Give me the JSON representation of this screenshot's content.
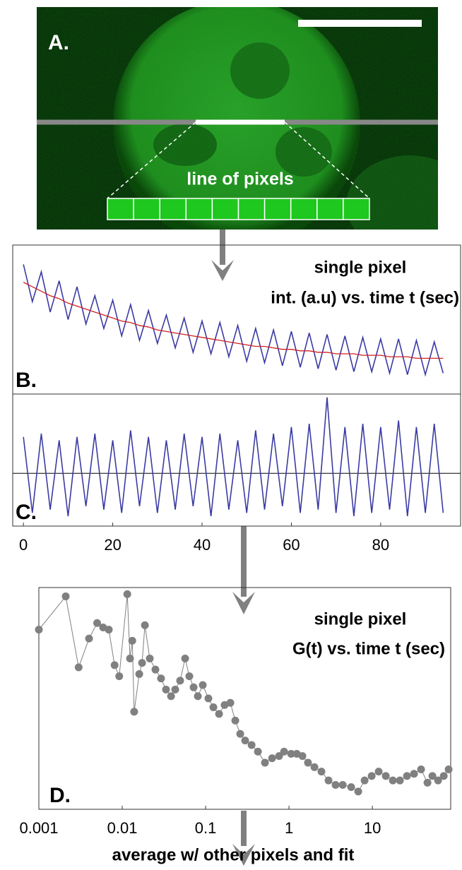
{
  "panel_a": {
    "label": "A.",
    "caption": "line of pixels"
  },
  "chart_data": [
    {
      "type": "line",
      "label": "B.",
      "annotations": [
        "single pixel",
        "int. (a.u) vs. time t (sec)"
      ],
      "x": [
        0,
        2,
        4,
        6,
        8,
        10,
        12,
        14,
        16,
        18,
        20,
        22,
        24,
        26,
        28,
        30,
        32,
        34,
        36,
        38,
        40,
        42,
        44,
        46,
        48,
        50,
        52,
        54,
        56,
        58,
        60,
        62,
        64,
        66,
        68,
        70,
        72,
        74,
        76,
        78,
        80,
        82,
        84,
        86,
        88,
        90,
        92,
        94
      ],
      "series": [
        {
          "color": "#3b3ba3",
          "values": [
            0.87,
            0.62,
            0.82,
            0.55,
            0.76,
            0.5,
            0.72,
            0.47,
            0.66,
            0.44,
            0.63,
            0.39,
            0.6,
            0.36,
            0.56,
            0.34,
            0.53,
            0.31,
            0.51,
            0.28,
            0.49,
            0.27,
            0.48,
            0.25,
            0.46,
            0.22,
            0.44,
            0.21,
            0.43,
            0.19,
            0.42,
            0.18,
            0.41,
            0.17,
            0.4,
            0.16,
            0.39,
            0.15,
            0.38,
            0.15,
            0.37,
            0.14,
            0.37,
            0.13,
            0.36,
            0.13,
            0.35,
            0.14
          ]
        },
        {
          "color": "#d02020",
          "values": [
            0.75,
            0.72,
            0.69,
            0.66,
            0.64,
            0.61,
            0.59,
            0.57,
            0.55,
            0.53,
            0.51,
            0.49,
            0.48,
            0.46,
            0.45,
            0.43,
            0.42,
            0.41,
            0.4,
            0.39,
            0.38,
            0.37,
            0.36,
            0.35,
            0.34,
            0.33,
            0.32,
            0.32,
            0.31,
            0.3,
            0.3,
            0.29,
            0.29,
            0.28,
            0.28,
            0.27,
            0.27,
            0.27,
            0.26,
            0.26,
            0.26,
            0.25,
            0.25,
            0.25,
            0.24,
            0.24,
            0.24,
            0.24
          ]
        }
      ],
      "xlim": [
        -0.5,
        96
      ],
      "ylim": [
        0,
        1
      ]
    },
    {
      "type": "line",
      "label": "C.",
      "x": [
        0,
        2,
        4,
        6,
        8,
        10,
        12,
        14,
        16,
        18,
        20,
        22,
        24,
        26,
        28,
        30,
        32,
        34,
        36,
        38,
        40,
        42,
        44,
        46,
        48,
        50,
        52,
        54,
        56,
        58,
        60,
        62,
        64,
        66,
        68,
        70,
        72,
        74,
        76,
        78,
        80,
        82,
        84,
        86,
        88,
        90,
        92,
        94
      ],
      "series": [
        {
          "color": "#3b3ba3",
          "values": [
            0.55,
            -0.6,
            0.6,
            -0.55,
            0.5,
            -0.65,
            0.55,
            -0.5,
            0.6,
            -0.55,
            0.5,
            -0.6,
            0.65,
            -0.5,
            0.55,
            -0.6,
            0.5,
            -0.55,
            0.6,
            -0.5,
            0.55,
            -0.65,
            0.6,
            -0.55,
            0.5,
            -0.6,
            0.65,
            -0.55,
            0.6,
            -0.5,
            0.7,
            -0.6,
            0.75,
            -0.55,
            1.15,
            -0.6,
            0.7,
            -0.65,
            0.75,
            -0.6,
            0.7,
            -0.55,
            0.8,
            -0.65,
            0.7,
            -0.6,
            0.75,
            -0.6
          ]
        }
      ],
      "xlim": [
        -0.5,
        96
      ],
      "ylim": [
        -0.8,
        1.2
      ],
      "xticks": [
        0,
        20,
        40,
        60,
        80
      ]
    },
    {
      "type": "scatter",
      "label": "D.",
      "annotations": [
        "single pixel",
        "G(t) vs. time t (sec)"
      ],
      "log_x": true,
      "color": "#808080",
      "x": [
        0.001,
        0.0021,
        0.003,
        0.004,
        0.005,
        0.0059,
        0.0069,
        0.0081,
        0.0092,
        0.0115,
        0.0124,
        0.0132,
        0.0139,
        0.016,
        0.0173,
        0.0187,
        0.0214,
        0.025,
        0.0292,
        0.0335,
        0.0385,
        0.0432,
        0.0495,
        0.0568,
        0.0638,
        0.0718,
        0.0807,
        0.0925,
        0.108,
        0.124,
        0.145,
        0.169,
        0.198,
        0.227,
        0.26,
        0.298,
        0.356,
        0.424,
        0.515,
        0.627,
        0.761,
        0.873,
        1.06,
        1.24,
        1.45,
        1.69,
        2.02,
        2.45,
        2.98,
        3.62,
        4.41,
        5.57,
        6.77,
        8.07,
        9.81,
        11.9,
        14.5,
        17.6,
        21.4,
        26.0,
        31.6,
        38.4,
        45.8,
        52.5,
        61.4,
        71.8,
        82.2
      ],
      "values": [
        0.81,
        0.96,
        0.64,
        0.77,
        0.84,
        0.82,
        0.81,
        0.65,
        0.6,
        0.97,
        0.68,
        0.76,
        0.44,
        0.61,
        0.66,
        0.83,
        0.68,
        0.63,
        0.59,
        0.54,
        0.51,
        0.54,
        0.58,
        0.68,
        0.6,
        0.55,
        0.51,
        0.56,
        0.5,
        0.46,
        0.43,
        0.47,
        0.48,
        0.4,
        0.34,
        0.31,
        0.29,
        0.26,
        0.21,
        0.23,
        0.24,
        0.26,
        0.25,
        0.25,
        0.24,
        0.21,
        0.19,
        0.17,
        0.13,
        0.11,
        0.11,
        0.1,
        0.08,
        0.13,
        0.15,
        0.17,
        0.15,
        0.13,
        0.13,
        0.15,
        0.16,
        0.18,
        0.12,
        0.15,
        0.13,
        0.15,
        0.18
      ],
      "xlim": [
        0.001,
        87
      ],
      "ylim": [
        0,
        1
      ],
      "xticks": [
        0.001,
        0.01,
        0.1,
        1,
        10
      ]
    }
  ],
  "footer": "average w/ other pixels and fit"
}
